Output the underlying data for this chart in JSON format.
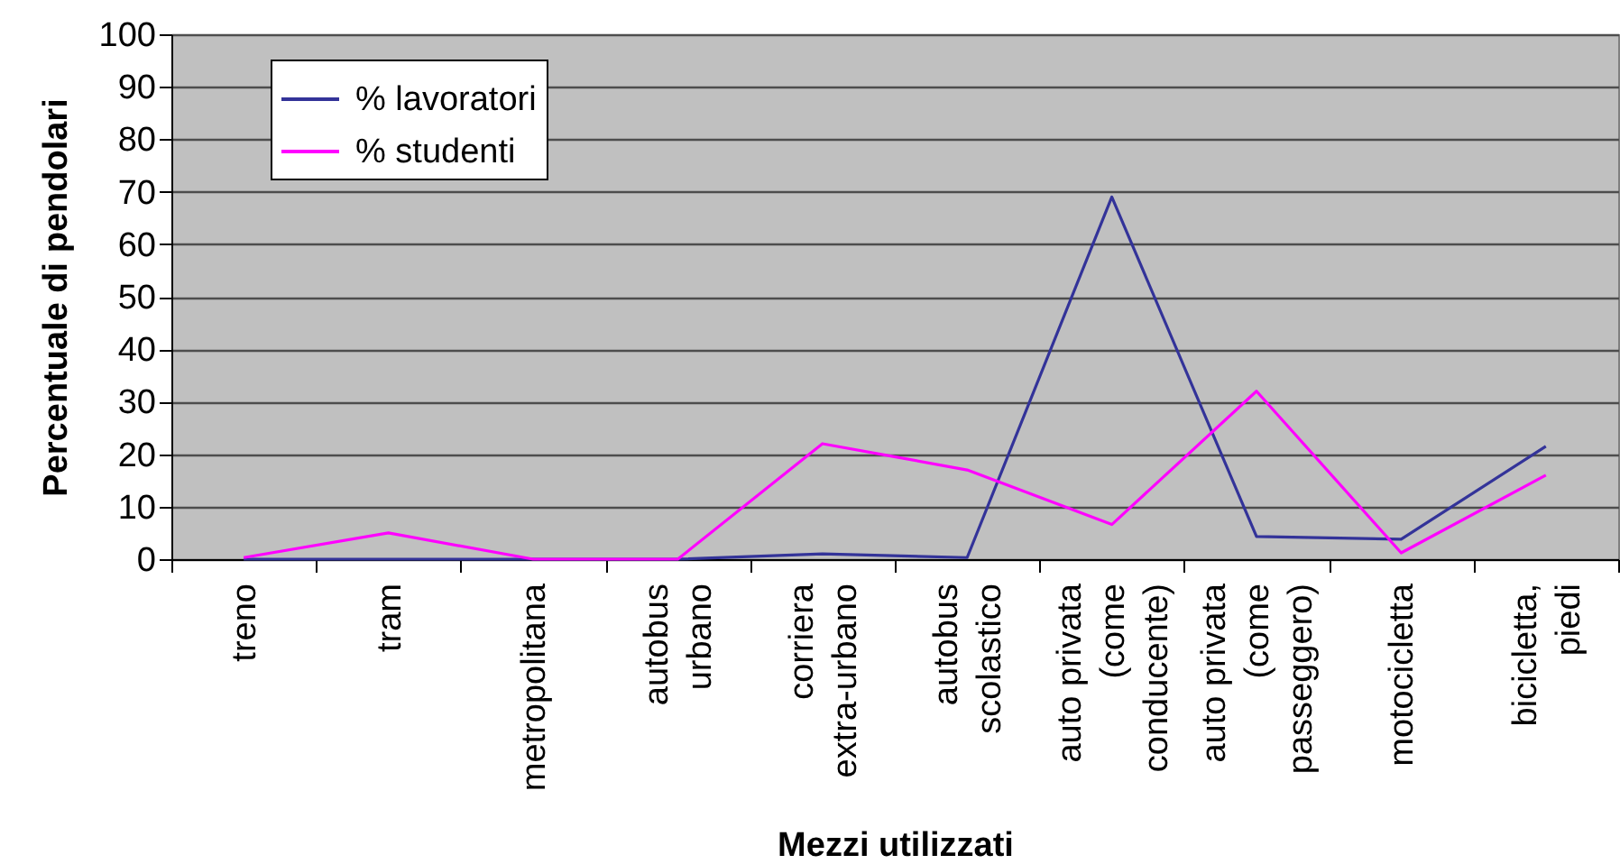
{
  "chart_data": {
    "type": "line",
    "xlabel": "Mezzi utilizzati",
    "ylabel": "Percentuale di pendolari",
    "categories": [
      "treno",
      "tram",
      "metropolitana",
      "autobus urbano",
      "corriera extra-urbano",
      "autobus scolastico",
      "auto privata (come conducente)",
      "auto privata (come passeggero)",
      "motocicletta",
      "bicicletta, piedi"
    ],
    "series": [
      {
        "name": "% lavoratori",
        "color": "#333399",
        "values": [
          0,
          0,
          0,
          0,
          1,
          0.3,
          69,
          4.3,
          3.8,
          21.5
        ]
      },
      {
        "name": "% studenti",
        "color": "#ff00ff",
        "values": [
          0.3,
          5,
          0,
          0,
          22,
          17,
          6.6,
          32,
          1.2,
          16
        ]
      }
    ],
    "ylim": [
      0,
      100
    ],
    "yticks": [
      0,
      10,
      20,
      30,
      40,
      50,
      60,
      70,
      80,
      90,
      100
    ],
    "grid": "y",
    "legend": "top left"
  }
}
